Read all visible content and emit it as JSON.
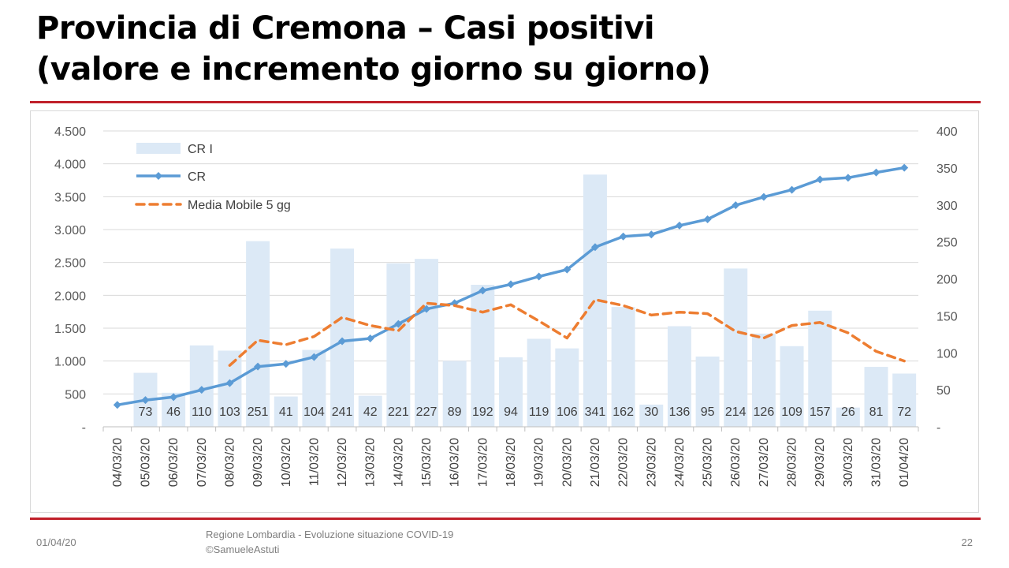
{
  "slide": {
    "title_line1": "Provincia di Cremona – Casi positivi",
    "title_line2": "(valore e incremento giorno su giorno)",
    "footer_date": "01/04/20",
    "footer_source_line1": "Regione Lombardia - Evoluzione situazione COVID-19",
    "footer_source_line2": "©SamueleAstuti",
    "page_number": "22"
  },
  "colors": {
    "bars": "#dce9f6",
    "line": "#5b9bd5",
    "moving_average": "#ed7d31",
    "rule": "#c0202a"
  },
  "chart_data": {
    "type": "combo",
    "categories": [
      "04/03/20",
      "05/03/20",
      "06/03/20",
      "07/03/20",
      "08/03/20",
      "09/03/20",
      "10/03/20",
      "11/03/20",
      "12/03/20",
      "13/03/20",
      "14/03/20",
      "15/03/20",
      "16/03/20",
      "17/03/20",
      "18/03/20",
      "19/03/20",
      "20/03/20",
      "21/03/20",
      "22/03/20",
      "23/03/20",
      "24/03/20",
      "25/03/20",
      "26/03/20",
      "27/03/20",
      "28/03/20",
      "29/03/20",
      "30/03/20",
      "31/03/20",
      "01/04/20"
    ],
    "left_axis": {
      "min": 0,
      "max": 4500,
      "ticks": [
        "-",
        "500",
        "1.000",
        "1.500",
        "2.000",
        "2.500",
        "3.000",
        "3.500",
        "4.000",
        "4.500"
      ]
    },
    "right_axis": {
      "min": 0,
      "max": 400,
      "ticks": [
        "-",
        "50",
        "100",
        "150",
        "200",
        "250",
        "300",
        "350",
        "400"
      ]
    },
    "grid": true,
    "legend_position": "top-left",
    "series": [
      {
        "name": "CR I",
        "kind": "bar",
        "axis": "right",
        "values": [
          null,
          73,
          46,
          110,
          103,
          251,
          41,
          104,
          241,
          42,
          221,
          227,
          89,
          192,
          94,
          119,
          106,
          341,
          162,
          30,
          136,
          95,
          214,
          126,
          109,
          157,
          26,
          81,
          72
        ],
        "labels": [
          "",
          "73",
          "46",
          "110",
          "103",
          "251",
          "41",
          "104",
          "241",
          "42",
          "221",
          "227",
          "89",
          "192",
          "94",
          "119",
          "106",
          "341",
          "162",
          "30",
          "136",
          "95",
          "214",
          "126",
          "109",
          "157",
          "26",
          "81",
          "72"
        ]
      },
      {
        "name": "CR",
        "kind": "line",
        "axis": "left",
        "values": [
          333,
          406,
          452,
          562,
          665,
          916,
          957,
          1061,
          1302,
          1344,
          1565,
          1792,
          1881,
          2073,
          2167,
          2286,
          2392,
          2733,
          2895,
          2925,
          3061,
          3156,
          3370,
          3496,
          3605,
          3762,
          3788,
          3869,
          3941
        ]
      },
      {
        "name": "Media Mobile 5 gg",
        "kind": "line-dashed",
        "axis": "right",
        "values": [
          null,
          null,
          null,
          null,
          83,
          117,
          111,
          122,
          148,
          137,
          130,
          167,
          164,
          155,
          165,
          143,
          120,
          172,
          164,
          151,
          155,
          153,
          129,
          120,
          137,
          141,
          127,
          102,
          89
        ]
      }
    ]
  }
}
